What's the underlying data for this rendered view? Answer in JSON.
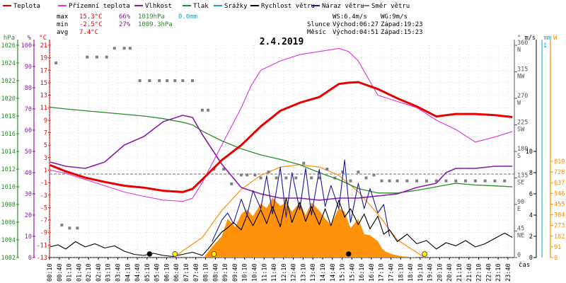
{
  "chart_data": {
    "type": "line",
    "title": "2.4.2019",
    "legend": [
      {
        "name": "Teplota",
        "color": "#e60000"
      },
      {
        "name": "Přízemní teplota",
        "color": "#dd33dd"
      },
      {
        "name": "Vlhkost",
        "color": "#8a1aa8"
      },
      {
        "name": "Tlak",
        "color": "#2a8a2a"
      },
      {
        "name": "Srážky",
        "color": "#1aa0c8"
      },
      {
        "name": "Rychlost větru",
        "color": "#000000"
      },
      {
        "name": "Náraz větru",
        "color": "#1a1a99"
      },
      {
        "name": "Směr větru",
        "color": "#808080"
      }
    ],
    "stats": {
      "max_label": "max",
      "min_label": "min",
      "avg_label": "avg",
      "max": {
        "temp": "15.3°C",
        "hum": "66%",
        "press": "1019hPa",
        "rain": "0.0mm"
      },
      "min": {
        "temp": "-2.5°C",
        "hum": "27%",
        "press": "1009.3hPa"
      },
      "avg": {
        "temp": "7.4°C"
      },
      "ws": "WS:6.4m/s",
      "wg": "WG:9m/s",
      "slunce": "Slunce",
      "mesic": "Měsíc",
      "sun_rise": "Východ:06:27",
      "sun_set": "Západ:19:23",
      "moon_rise": "Východ:04:51",
      "moon_set": "Západ:15:23"
    },
    "axes": {
      "press": {
        "unit": "hPa",
        "ticks": [
          1026,
          1024,
          1022,
          1020,
          1018,
          1016,
          1014,
          1012,
          1010,
          1008,
          1006,
          1004,
          1002
        ],
        "range": [
          1002,
          1026
        ]
      },
      "hum": {
        "unit": "%",
        "ticks": [
          100,
          90,
          80,
          70,
          60,
          50,
          40,
          30,
          20,
          10,
          0
        ],
        "range": [
          0,
          100
        ]
      },
      "temp": {
        "unit": "°C",
        "ticks": [
          21,
          19,
          17,
          15,
          13,
          11,
          9,
          7,
          5,
          3,
          1,
          -1,
          -3,
          -5,
          -7,
          -9,
          -11,
          -13
        ],
        "range": [
          -13,
          21
        ]
      },
      "dir": {
        "unit": "°",
        "ticks": [
          "360 N",
          "315 NW",
          "270 W",
          "225 SW",
          "180 S",
          "135 SE",
          "90 E",
          "45 NE",
          "0"
        ],
        "range": [
          0,
          360
        ]
      },
      "wind": {
        "unit": "m/s",
        "ticks": [
          10,
          8,
          6,
          4,
          2,
          0
        ],
        "range": [
          0,
          10
        ]
      },
      "rain": {
        "unit": "mm",
        "ticks": [
          1
        ],
        "range": [
          0,
          1
        ]
      },
      "solar": {
        "unit": "W",
        "ticks": [
          819,
          728,
          637,
          546,
          455,
          364,
          273,
          182,
          91,
          0
        ],
        "range": [
          0,
          819
        ]
      }
    },
    "x_label": "čas",
    "x_ticks": [
      "00:10",
      "00:40",
      "01:10",
      "01:40",
      "02:10",
      "02:40",
      "03:10",
      "03:40",
      "04:10",
      "04:40",
      "05:10",
      "05:40",
      "06:10",
      "06:40",
      "07:10",
      "07:40",
      "08:10",
      "08:40",
      "09:10",
      "09:40",
      "10:10",
      "10:40",
      "11:10",
      "11:40",
      "12:10",
      "12:40",
      "13:10",
      "13:40",
      "14:10",
      "14:40",
      "15:10",
      "15:40",
      "16:10",
      "16:40",
      "17:10",
      "17:40",
      "18:10",
      "18:40",
      "19:10",
      "19:40",
      "20:10",
      "20:40",
      "21:10",
      "21:40",
      "22:10",
      "22:40",
      "23:10",
      "23:40"
    ],
    "x_range_h": [
      0.17,
      24
    ],
    "series": {
      "temperature": {
        "x": [
          0.2,
          1,
          2,
          3,
          4,
          5,
          6,
          7,
          7.5,
          8,
          9,
          10,
          11,
          12,
          13,
          14,
          15,
          15.5,
          16,
          17,
          18,
          19,
          20,
          20.5,
          21,
          22,
          23,
          23.9
        ],
        "y": [
          1.8,
          0.8,
          -0.2,
          -0.9,
          -1.5,
          -1.8,
          -2.3,
          -2.5,
          -2,
          -0.5,
          2.6,
          5,
          8,
          10.5,
          11.8,
          12.7,
          14.8,
          15,
          15.1,
          14,
          12.5,
          11.2,
          9.6,
          9.8,
          10,
          10,
          9.8,
          9.5
        ]
      },
      "ground_temperature": {
        "x": [
          0.2,
          1,
          2,
          3,
          4,
          5,
          6,
          7,
          7.5,
          8,
          9,
          10,
          10.5,
          11,
          12,
          13,
          14,
          15,
          15.5,
          16,
          17,
          18,
          19,
          20,
          21,
          22,
          23,
          23.9
        ],
        "y": [
          1.0,
          0.5,
          -0.5,
          -1.5,
          -2.5,
          -3.2,
          -3.8,
          -4,
          -3.5,
          -1,
          5,
          11,
          14.5,
          17,
          18.5,
          19.5,
          20,
          20.5,
          20,
          18.5,
          13,
          12,
          11,
          9,
          7.5,
          5.5,
          6.3,
          7.2
        ]
      },
      "humidity": {
        "x": [
          0.2,
          1,
          2,
          3,
          4,
          5,
          6,
          7,
          7.5,
          8,
          9,
          10,
          11,
          12,
          13,
          14,
          15,
          16,
          17,
          18,
          19,
          20,
          20.5,
          21,
          22,
          23,
          23.9
        ],
        "y": [
          45,
          43,
          42,
          45,
          53,
          57,
          64,
          67,
          66,
          58,
          44,
          33,
          30,
          28,
          28,
          27,
          28,
          28,
          29,
          30,
          33,
          35,
          40,
          42,
          42,
          43,
          43
        ]
      },
      "pressure": {
        "x": [
          0.2,
          1,
          2,
          3,
          4,
          5,
          6,
          7,
          7.5,
          8,
          9,
          10,
          11,
          12,
          13,
          14,
          15,
          16,
          17,
          18,
          19,
          20,
          21,
          22,
          23,
          23.9
        ],
        "y": [
          1019,
          1018.8,
          1018.6,
          1018.4,
          1018.2,
          1018,
          1017.7,
          1017.3,
          1017,
          1016.3,
          1015.2,
          1014.3,
          1013.6,
          1013.1,
          1012.5,
          1011.6,
          1010.8,
          1009.8,
          1009.3,
          1009.3,
          1009.6,
          1010,
          1010.4,
          1010.2,
          1010.1,
          1010
        ]
      },
      "solar": {
        "x": [
          8.1,
          8.5,
          9,
          9.3,
          9.7,
          10,
          10.3,
          10.6,
          11,
          11.3,
          11.6,
          12,
          12.3,
          12.6,
          13,
          13.3,
          13.6,
          14,
          14.3,
          14.6,
          15,
          15.3,
          15.6,
          16,
          16.3,
          16.6,
          17,
          17.2,
          17.4,
          17.8,
          18.3,
          19
        ],
        "y": [
          5,
          90,
          180,
          330,
          260,
          370,
          410,
          350,
          460,
          420,
          510,
          440,
          470,
          390,
          470,
          360,
          470,
          400,
          330,
          280,
          420,
          390,
          250,
          330,
          200,
          190,
          140,
          80,
          50,
          25,
          10,
          0
        ]
      },
      "solar_theory": {
        "x": [
          6.5,
          8,
          9,
          10,
          11,
          12,
          13,
          14,
          15,
          16,
          17,
          18,
          19.4
        ],
        "y": [
          0,
          170,
          400,
          580,
          700,
          770,
          790,
          770,
          700,
          560,
          370,
          150,
          0
        ]
      },
      "wind_speed": {
        "x": [
          0.2,
          0.6,
          1,
          1.5,
          2,
          2.5,
          3,
          3.5,
          4,
          4.5,
          5,
          5.5,
          6,
          6.5,
          7,
          7.5,
          8,
          8.3,
          8.6,
          9,
          9.3,
          9.6,
          10,
          10.3,
          10.6,
          11,
          11.3,
          11.6,
          12,
          12.3,
          12.6,
          13,
          13.3,
          13.6,
          14,
          14.3,
          14.6,
          15,
          15.3,
          15.6,
          16,
          16.3,
          16.6,
          17,
          17.3,
          17.6,
          18,
          18.5,
          19,
          19.5,
          20,
          20.5,
          21,
          21.5,
          22,
          22.5,
          23,
          23.5,
          23.9
        ],
        "y": [
          1,
          1.2,
          0.8,
          1.5,
          1,
          1.3,
          0.9,
          1.1,
          0.6,
          0.3,
          0.2,
          0.4,
          0.2,
          0.1,
          0.3,
          0.5,
          0.2,
          0.8,
          1.5,
          2.4,
          2.8,
          3.3,
          2.6,
          4,
          3,
          4.5,
          3.2,
          4.8,
          2.9,
          5.6,
          3.3,
          5.2,
          3.4,
          4.8,
          3.1,
          4.6,
          3,
          5.4,
          3.8,
          4.6,
          3.1,
          4.1,
          2.7,
          3.9,
          2.2,
          2.6,
          1.5,
          2.2,
          1.3,
          1.6,
          0.8,
          1.4,
          1.1,
          1.6,
          1,
          1.3,
          1.8,
          2.3,
          1.9
        ]
      },
      "wind_gust": {
        "x": [
          8.5,
          9,
          9.3,
          9.6,
          10,
          10.3,
          10.6,
          11,
          11.3,
          11.6,
          12,
          12.3,
          12.6,
          13,
          13.3,
          13.6,
          14,
          14.3,
          14.6,
          15,
          15.3,
          15.6,
          16,
          16.3,
          16.6,
          17,
          17.3,
          17.6
        ],
        "y": [
          1.5,
          3.5,
          4.2,
          3.2,
          5.5,
          4,
          6.3,
          4.6,
          7.7,
          4.1,
          8.5,
          3.8,
          8,
          4.5,
          8.4,
          4,
          8.3,
          4.8,
          6.8,
          4.6,
          9.2,
          3.3,
          7,
          4.6,
          6.5,
          4.2,
          5,
          2
        ]
      },
      "wind_dir_scatter": {
        "x": [
          0.5,
          0.8,
          1.2,
          1.6,
          2.1,
          2.6,
          3.1,
          3.5,
          4,
          4.3,
          4.8,
          5.3,
          5.8,
          6.2,
          6.6,
          7,
          7.5,
          8,
          8.3,
          8.6,
          9.1,
          9.5,
          10,
          10.3,
          10.7,
          11,
          11.4,
          11.8,
          12.3,
          12.8,
          13.2,
          13.6,
          14,
          14.4,
          14.8,
          15.2,
          15.6,
          16,
          16.4,
          16.8,
          17.2,
          17.6,
          18,
          18.5,
          19,
          19.5,
          20,
          20.5,
          21,
          21.5,
          22,
          22.5,
          23,
          23.5
        ],
        "y": [
          330,
          55,
          50,
          50,
          340,
          340,
          340,
          355,
          355,
          355,
          300,
          300,
          300,
          300,
          300,
          300,
          300,
          250,
          250,
          150,
          150,
          125,
          140,
          140,
          140,
          135,
          145,
          135,
          135,
          135,
          160,
          135,
          135,
          150,
          135,
          145,
          130,
          145,
          135,
          140,
          130,
          130,
          130,
          130,
          130,
          130,
          130,
          130,
          130,
          130,
          130,
          130,
          130,
          130
        ]
      },
      "markers": [
        {
          "x": 5.3,
          "color": "#000000"
        },
        {
          "x": 6.6,
          "color": "#ffee00"
        },
        {
          "x": 8.6,
          "color": "#ffee00"
        },
        {
          "x": 15.5,
          "color": "#000000"
        },
        {
          "x": 19.4,
          "color": "#ffee00"
        }
      ]
    }
  }
}
